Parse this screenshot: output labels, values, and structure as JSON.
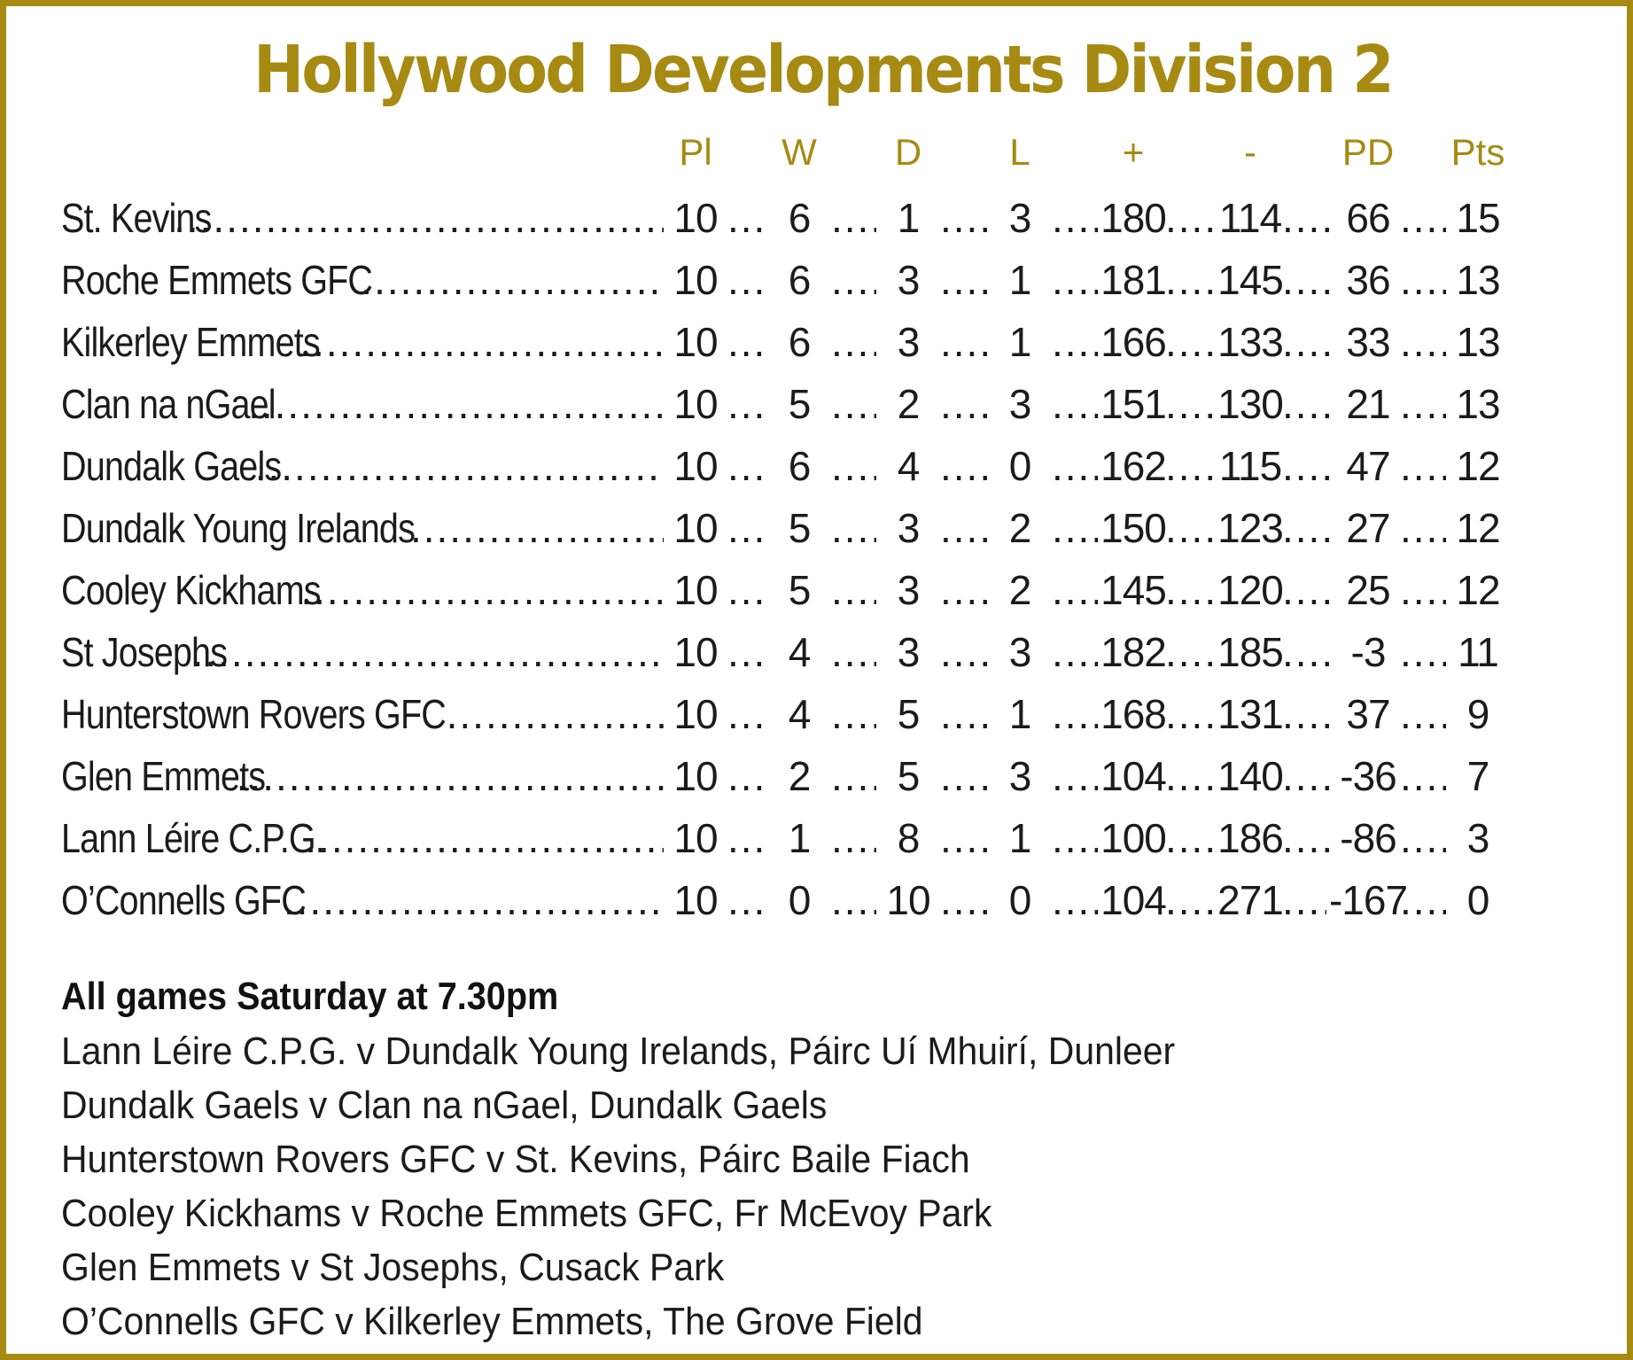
{
  "title": "Hollywood Developments Division 2",
  "columns": [
    "Pl",
    "W",
    "D",
    "L",
    "+",
    "-",
    "PD",
    "Pts"
  ],
  "rows": [
    {
      "team": "St. Kevins",
      "pl": "10",
      "w": "6",
      "d": "1",
      "l": "3",
      "for": "180",
      "against": "114",
      "pd": "66",
      "pts": "15"
    },
    {
      "team": "Roche Emmets GFC",
      "pl": "10",
      "w": "6",
      "d": "3",
      "l": "1",
      "for": "181",
      "against": "145",
      "pd": "36",
      "pts": "13"
    },
    {
      "team": "Kilkerley Emmets",
      "pl": "10",
      "w": "6",
      "d": "3",
      "l": "1",
      "for": "166",
      "against": "133",
      "pd": "33",
      "pts": "13"
    },
    {
      "team": "Clan na nGael",
      "pl": "10",
      "w": "5",
      "d": "2",
      "l": "3",
      "for": "151",
      "against": "130",
      "pd": "21",
      "pts": "13"
    },
    {
      "team": "Dundalk Gaels",
      "pl": "10",
      "w": "6",
      "d": "4",
      "l": "0",
      "for": "162",
      "against": "115",
      "pd": "47",
      "pts": "12"
    },
    {
      "team": "Dundalk Young Irelands",
      "pl": "10",
      "w": "5",
      "d": "3",
      "l": "2",
      "for": "150",
      "against": "123",
      "pd": "27",
      "pts": "12"
    },
    {
      "team": "Cooley Kickhams",
      "pl": "10",
      "w": "5",
      "d": "3",
      "l": "2",
      "for": "145",
      "against": "120",
      "pd": "25",
      "pts": "12"
    },
    {
      "team": "St Josephs",
      "pl": "10",
      "w": "4",
      "d": "3",
      "l": "3",
      "for": "182",
      "against": "185",
      "pd": "-3",
      "pts": "11"
    },
    {
      "team": "Hunterstown Rovers GFC",
      "pl": "10",
      "w": "4",
      "d": "5",
      "l": "1",
      "for": "168",
      "against": "131",
      "pd": "37",
      "pts": "9"
    },
    {
      "team": "Glen Emmets",
      "pl": "10",
      "w": "2",
      "d": "5",
      "l": "3",
      "for": "104",
      "against": "140",
      "pd": "-36",
      "pts": "7"
    },
    {
      "team": "Lann Léire C.P.G.",
      "pl": "10",
      "w": "1",
      "d": "8",
      "l": "1",
      "for": "100",
      "against": "186",
      "pd": "-86",
      "pts": "3"
    },
    {
      "team": "O’Connells GFC",
      "pl": "10",
      "w": "0",
      "d": "10",
      "l": "0",
      "for": "104",
      "against": "271",
      "pd": "-167",
      "pts": "0"
    }
  ],
  "fixtures": {
    "heading": "All games Saturday at 7.30pm",
    "items": [
      "Lann Léire C.P.G. v Dundalk Young Irelands, Páirc Uí Mhuirí, Dunleer",
      "Dundalk Gaels v Clan na nGael, Dundalk Gaels",
      "Hunterstown Rovers GFC v St. Kevins, Páirc Baile Fiach",
      "Cooley Kickhams v Roche Emmets GFC, Fr McEvoy Park",
      "Glen Emmets v St Josephs, Cusack Park",
      "O’Connells GFC v Kilkerley Emmets, The Grove Field"
    ]
  },
  "colors": {
    "accent": "#a68a12",
    "text": "#1b1b1b"
  }
}
